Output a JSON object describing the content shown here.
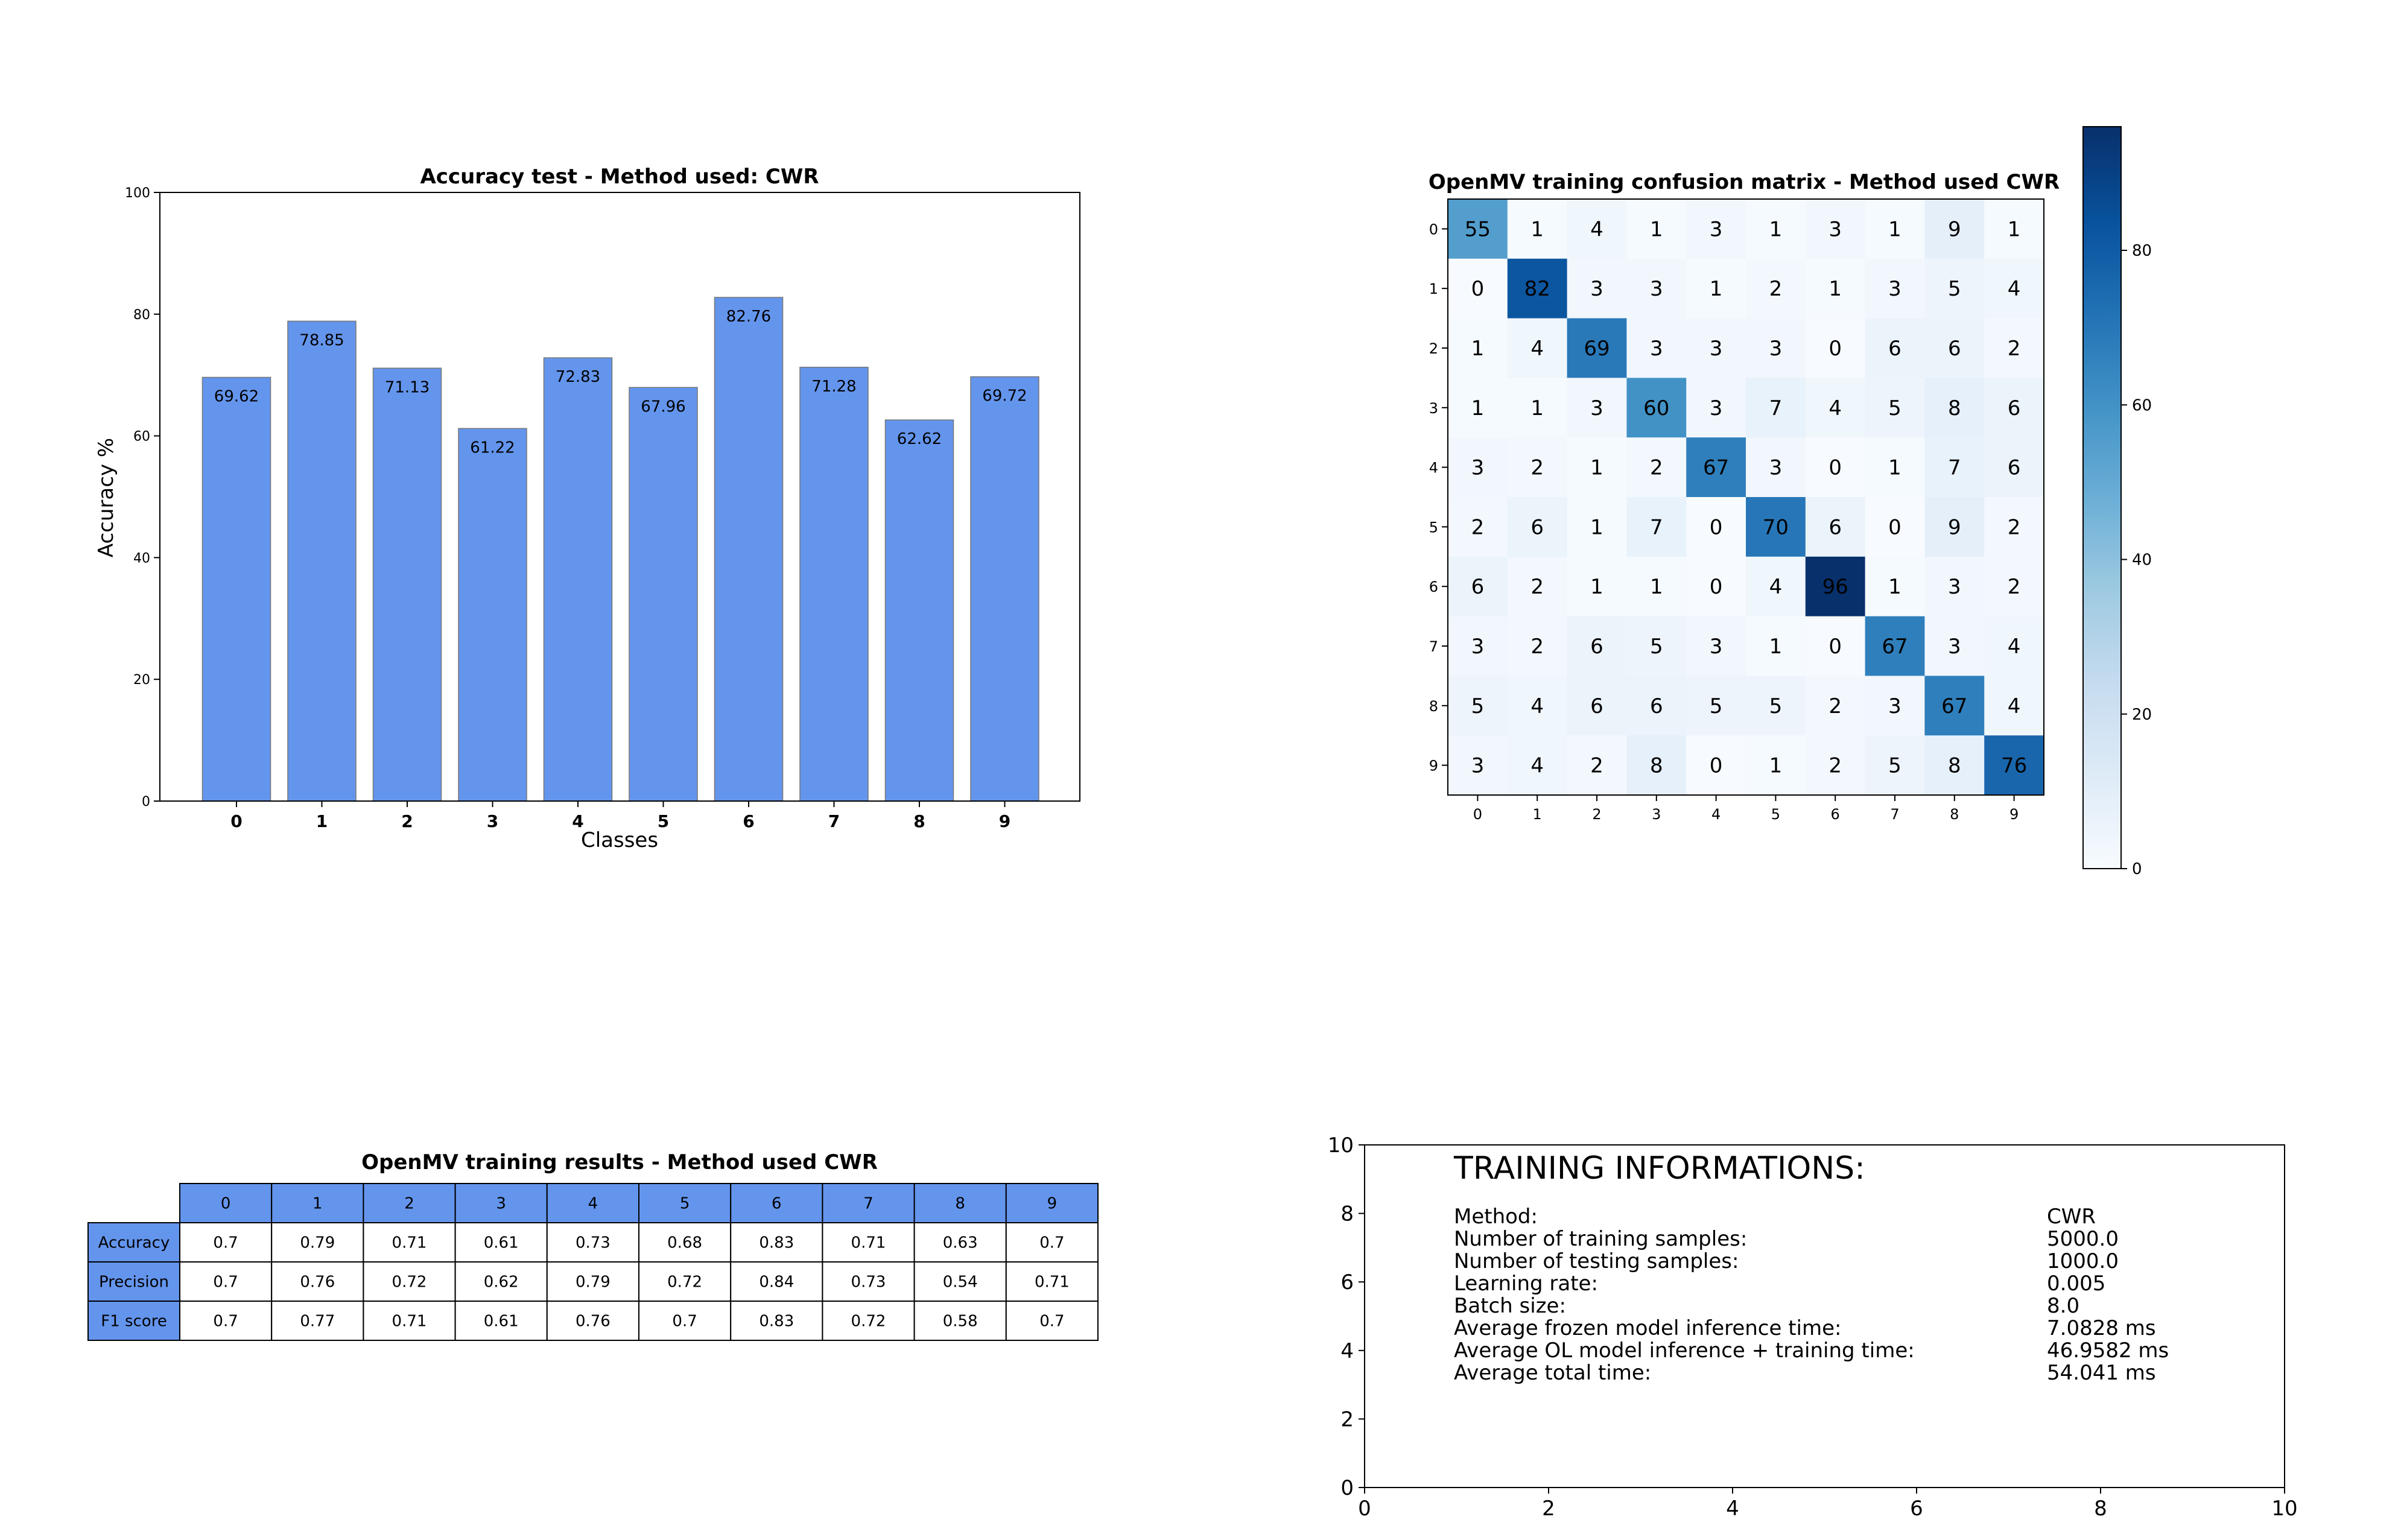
{
  "chart_data": [
    {
      "type": "bar",
      "title": "Accuracy test - Method used: CWR",
      "xlabel": "Classes",
      "ylabel": "Accuracy %",
      "categories": [
        "0",
        "1",
        "2",
        "3",
        "4",
        "5",
        "6",
        "7",
        "8",
        "9"
      ],
      "values": [
        69.62,
        78.85,
        71.13,
        61.22,
        72.83,
        67.96,
        82.76,
        71.28,
        62.62,
        69.72
      ],
      "value_labels": [
        "69.62",
        "78.85",
        "71.13",
        "61.22",
        "72.83",
        "67.96",
        "82.76",
        "71.28",
        "62.62",
        "69.72"
      ],
      "ylim": [
        0,
        100
      ],
      "yticks": [
        "0",
        "20",
        "40",
        "60",
        "80",
        "100"
      ],
      "bar_color": "#6495ED",
      "grid": false
    },
    {
      "type": "heatmap",
      "title": "OpenMV training confusion matrix - Method used CWR",
      "row_labels": [
        "0",
        "1",
        "2",
        "3",
        "4",
        "5",
        "6",
        "7",
        "8",
        "9"
      ],
      "col_labels": [
        "0",
        "1",
        "2",
        "3",
        "4",
        "5",
        "6",
        "7",
        "8",
        "9"
      ],
      "matrix": [
        [
          55,
          1,
          4,
          1,
          3,
          1,
          3,
          1,
          9,
          1
        ],
        [
          0,
          82,
          3,
          3,
          1,
          2,
          1,
          3,
          5,
          4
        ],
        [
          1,
          4,
          69,
          3,
          3,
          3,
          0,
          6,
          6,
          2
        ],
        [
          1,
          1,
          3,
          60,
          3,
          7,
          4,
          5,
          8,
          6
        ],
        [
          3,
          2,
          1,
          2,
          67,
          3,
          0,
          1,
          7,
          6
        ],
        [
          2,
          6,
          1,
          7,
          0,
          70,
          6,
          0,
          9,
          2
        ],
        [
          6,
          2,
          1,
          1,
          0,
          4,
          96,
          1,
          3,
          2
        ],
        [
          3,
          2,
          6,
          5,
          3,
          1,
          0,
          67,
          3,
          4
        ],
        [
          5,
          4,
          6,
          6,
          5,
          5,
          2,
          3,
          67,
          4
        ],
        [
          3,
          4,
          2,
          8,
          0,
          1,
          2,
          5,
          8,
          76
        ]
      ],
      "colormap": "Blues",
      "colorbar_range": [
        0,
        96
      ],
      "colorbar_ticks": [
        "0",
        "20",
        "40",
        "60",
        "80"
      ]
    },
    {
      "type": "table",
      "title": "OpenMV training results - Method used CWR",
      "columns": [
        "0",
        "1",
        "2",
        "3",
        "4",
        "5",
        "6",
        "7",
        "8",
        "9"
      ],
      "header_color": "#6495ED",
      "rows": [
        {
          "label": "Accuracy",
          "values": [
            "0.7",
            "0.79",
            "0.71",
            "0.61",
            "0.73",
            "0.68",
            "0.83",
            "0.71",
            "0.63",
            "0.7"
          ]
        },
        {
          "label": "Precision",
          "values": [
            "0.7",
            "0.76",
            "0.72",
            "0.62",
            "0.79",
            "0.72",
            "0.84",
            "0.73",
            "0.54",
            "0.71"
          ]
        },
        {
          "label": "F1 score",
          "values": [
            "0.7",
            "0.77",
            "0.71",
            "0.61",
            "0.76",
            "0.7",
            "0.83",
            "0.72",
            "0.58",
            "0.7"
          ]
        }
      ]
    }
  ],
  "info_panel": {
    "title": "TRAINING INFORMATIONS:",
    "xlim": [
      0,
      10
    ],
    "ylim": [
      0,
      10
    ],
    "xticks": [
      "0",
      "2",
      "4",
      "6",
      "8",
      "10"
    ],
    "yticks": [
      "0",
      "2",
      "4",
      "6",
      "8",
      "10"
    ],
    "rows": [
      {
        "label": "Method:",
        "value": "CWR"
      },
      {
        "label": "Number of training samples:",
        "value": "5000.0"
      },
      {
        "label": "Number of testing samples:",
        "value": "1000.0"
      },
      {
        "label": "Learning rate:",
        "value": "0.005"
      },
      {
        "label": "Batch size:",
        "value": "8.0"
      },
      {
        "label": "Average frozen model inference time:",
        "value": "7.0828 ms"
      },
      {
        "label": "Average OL model inference + training time:",
        "value": "46.9582 ms"
      },
      {
        "label": "Average total time:",
        "value": "54.041 ms"
      }
    ]
  }
}
